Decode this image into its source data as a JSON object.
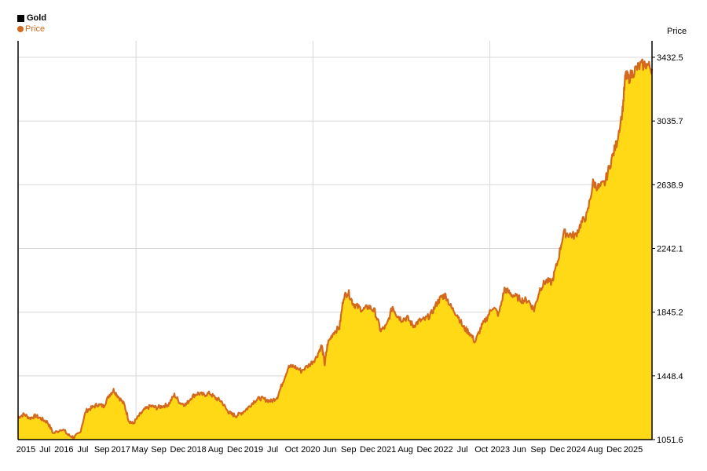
{
  "chart_data": {
    "type": "area",
    "title": "Gold",
    "ylabel": "Price",
    "xlabel": "",
    "legend": {
      "placement": "top-left",
      "entries": [
        "Price"
      ]
    },
    "y_ticks": [
      "1051.6",
      "1448.4",
      "1845.2",
      "2242.1",
      "2638.9",
      "3035.7",
      "3432.5"
    ],
    "ylim": [
      1051.6,
      3535
    ],
    "xlim": [
      2015.0,
      2025.75
    ],
    "x_tick_labels": [
      "2015",
      "Jul",
      "2016",
      "Jul",
      "Sep",
      "2017",
      "May",
      "Sep",
      "Dec",
      "2018",
      "Aug",
      "Dec",
      "2019",
      "Jul",
      "Oct",
      "2020",
      "Jun",
      "Sep",
      "Dec",
      "2021",
      "Aug",
      "Dec",
      "2022",
      "Jul",
      "Oct",
      "2023",
      "Jun",
      "Sep",
      "Dec",
      "2024",
      "Aug",
      "Dec",
      "2025"
    ],
    "grid": {
      "vertical_years": [
        2017,
        2020,
        2023
      ],
      "horizontal": true
    },
    "colors": {
      "fill": "#ffd816",
      "line": "#d2691e",
      "grid": "#d8d8d8"
    },
    "series": [
      {
        "name": "Price",
        "x": [
          2015.0,
          2015.1,
          2015.2,
          2015.3,
          2015.4,
          2015.5,
          2015.6,
          2015.75,
          2015.85,
          2015.95,
          2016.05,
          2016.15,
          2016.25,
          2016.35,
          2016.45,
          2016.55,
          2016.62,
          2016.7,
          2016.8,
          2016.88,
          2016.95,
          2017.05,
          2017.15,
          2017.25,
          2017.35,
          2017.45,
          2017.55,
          2017.65,
          2017.75,
          2017.85,
          2017.95,
          2018.05,
          2018.15,
          2018.25,
          2018.35,
          2018.45,
          2018.55,
          2018.62,
          2018.7,
          2018.8,
          2018.9,
          2019.0,
          2019.1,
          2019.2,
          2019.3,
          2019.4,
          2019.5,
          2019.58,
          2019.67,
          2019.8,
          2019.95,
          2020.05,
          2020.15,
          2020.2,
          2020.25,
          2020.35,
          2020.45,
          2020.52,
          2020.6,
          2020.68,
          2020.75,
          2020.85,
          2020.95,
          2021.05,
          2021.15,
          2021.25,
          2021.35,
          2021.42,
          2021.5,
          2021.6,
          2021.7,
          2021.8,
          2021.9,
          2022.0,
          2022.1,
          2022.18,
          2022.25,
          2022.35,
          2022.45,
          2022.55,
          2022.65,
          2022.75,
          2022.85,
          2022.95,
          2023.05,
          2023.15,
          2023.25,
          2023.35,
          2023.45,
          2023.55,
          2023.65,
          2023.75,
          2023.85,
          2023.95,
          2024.05,
          2024.15,
          2024.25,
          2024.35,
          2024.45,
          2024.55,
          2024.65,
          2024.75,
          2024.85,
          2024.95,
          2025.05,
          2025.15,
          2025.25,
          2025.3,
          2025.35,
          2025.45,
          2025.55,
          2025.65,
          2025.75
        ],
        "y": [
          1190,
          1210,
          1185,
          1200,
          1180,
          1160,
          1090,
          1120,
          1080,
          1065,
          1095,
          1230,
          1250,
          1270,
          1260,
          1330,
          1360,
          1320,
          1270,
          1170,
          1150,
          1200,
          1240,
          1260,
          1250,
          1260,
          1270,
          1330,
          1280,
          1270,
          1320,
          1340,
          1330,
          1340,
          1310,
          1290,
          1230,
          1210,
          1200,
          1220,
          1250,
          1290,
          1310,
          1300,
          1290,
          1320,
          1420,
          1500,
          1510,
          1480,
          1520,
          1560,
          1640,
          1520,
          1650,
          1720,
          1750,
          1940,
          1970,
          1900,
          1880,
          1860,
          1880,
          1850,
          1730,
          1760,
          1880,
          1830,
          1800,
          1810,
          1760,
          1790,
          1800,
          1830,
          1900,
          1940,
          1950,
          1870,
          1830,
          1750,
          1720,
          1660,
          1750,
          1810,
          1880,
          1830,
          1990,
          1960,
          1940,
          1920,
          1920,
          1860,
          1990,
          2040,
          2030,
          2160,
          2340,
          2330,
          2320,
          2400,
          2450,
          2650,
          2620,
          2650,
          2780,
          2900,
          3100,
          3320,
          3300,
          3350,
          3380,
          3390,
          3360
        ]
      }
    ]
  }
}
